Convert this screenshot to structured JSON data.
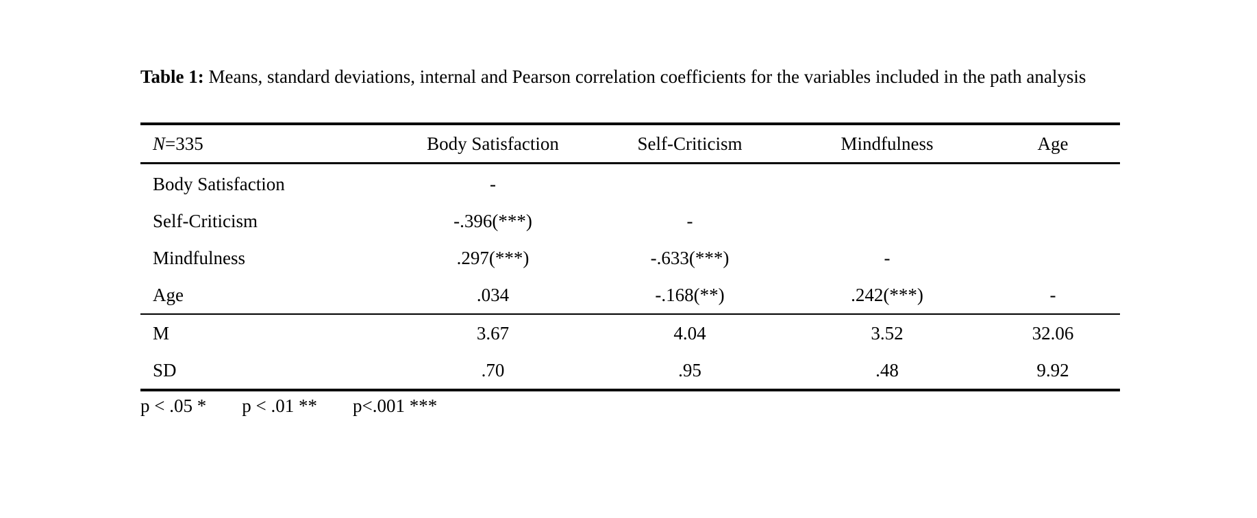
{
  "caption": {
    "label": "Table 1:",
    "text": " Means, standard deviations, internal and Pearson correlation coefficients for the variables included in the path analysis"
  },
  "table": {
    "header": {
      "n_symbol": "N",
      "n_value": "=335",
      "columns": [
        "Body Satisfaction",
        "Self-Criticism",
        "Mindfulness",
        "Age"
      ]
    },
    "correlations": [
      {
        "label": "Body Satisfaction",
        "cells": [
          "-",
          "",
          "",
          ""
        ]
      },
      {
        "label": "Self-Criticism",
        "cells": [
          "-.396(***)",
          "-",
          "",
          ""
        ]
      },
      {
        "label": "Mindfulness",
        "cells": [
          ".297(***)",
          "-.633(***)",
          "-",
          ""
        ]
      },
      {
        "label": "Age",
        "cells": [
          ".034",
          "-.168(**)",
          ".242(***)",
          "-"
        ]
      }
    ],
    "descriptives": [
      {
        "label": "M",
        "cells": [
          "3.67",
          "4.04",
          "3.52",
          "32.06"
        ]
      },
      {
        "label": "SD",
        "cells": [
          ".70",
          ".95",
          ".48",
          "9.92"
        ]
      }
    ]
  },
  "footnote": {
    "items": [
      "p < .05 *",
      "p < .01 **",
      "p<.001 ***"
    ]
  }
}
